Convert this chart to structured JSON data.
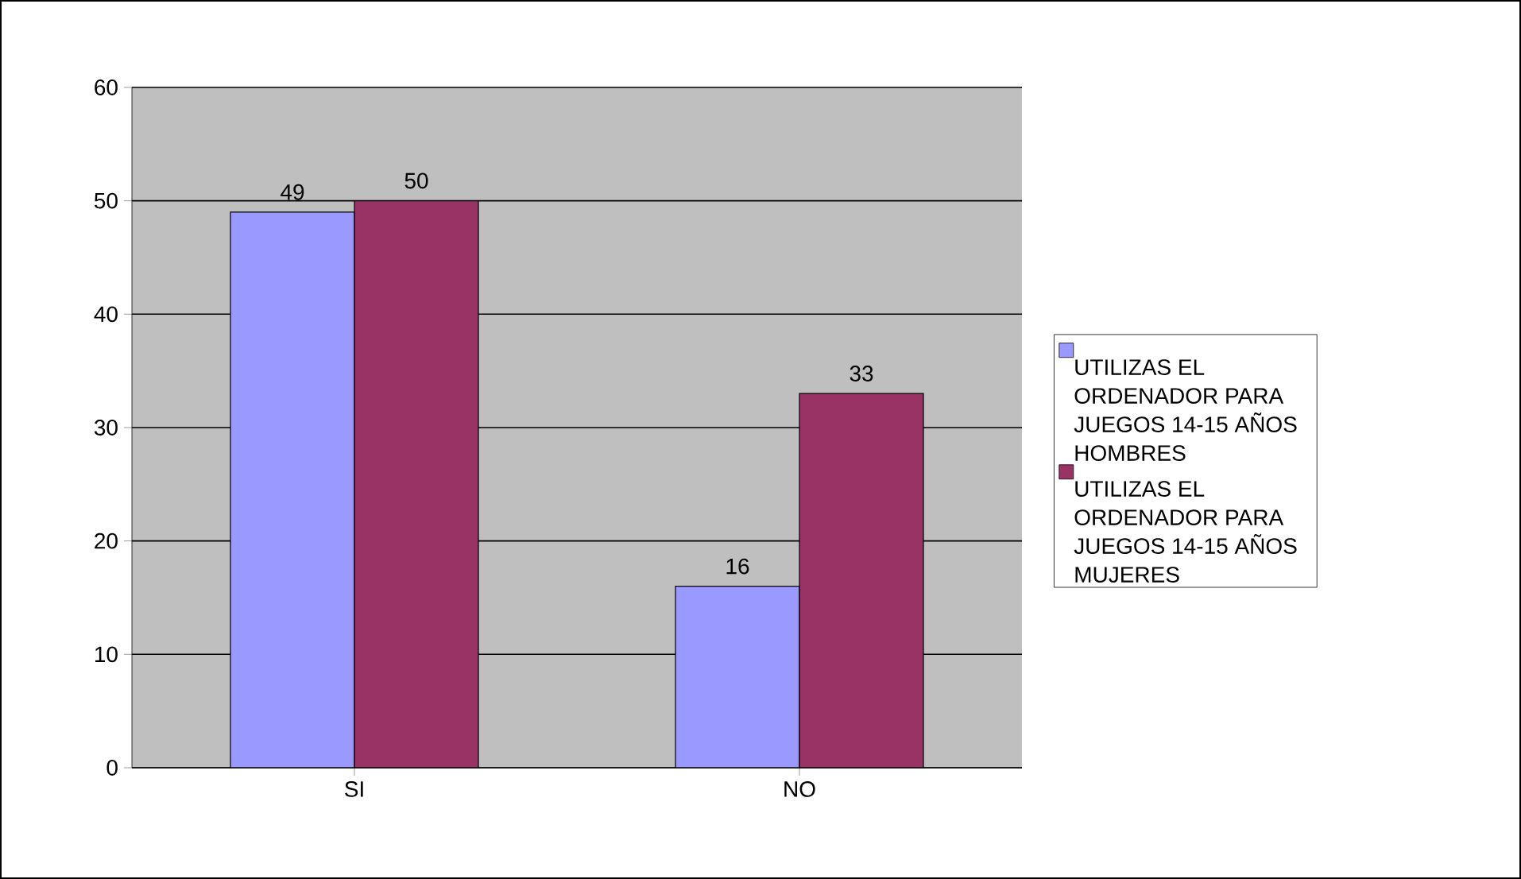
{
  "chart_data": {
    "type": "bar",
    "categories": [
      "SI",
      "NO"
    ],
    "series": [
      {
        "name": "UTILIZAS EL ORDENADOR PARA JUEGOS 14-15 AÑOS HOMBRES",
        "color": "#9999ff",
        "values": [
          49,
          16
        ]
      },
      {
        "name": "UTILIZAS EL ORDENADOR PARA JUEGOS 14-15 AÑOS MUJERES",
        "color": "#993366",
        "values": [
          50,
          33
        ]
      }
    ],
    "ylim": [
      0,
      60
    ],
    "yticks": [
      0,
      10,
      20,
      30,
      40,
      50,
      60
    ],
    "grid": "y",
    "legend": "right",
    "data_labels": true
  }
}
